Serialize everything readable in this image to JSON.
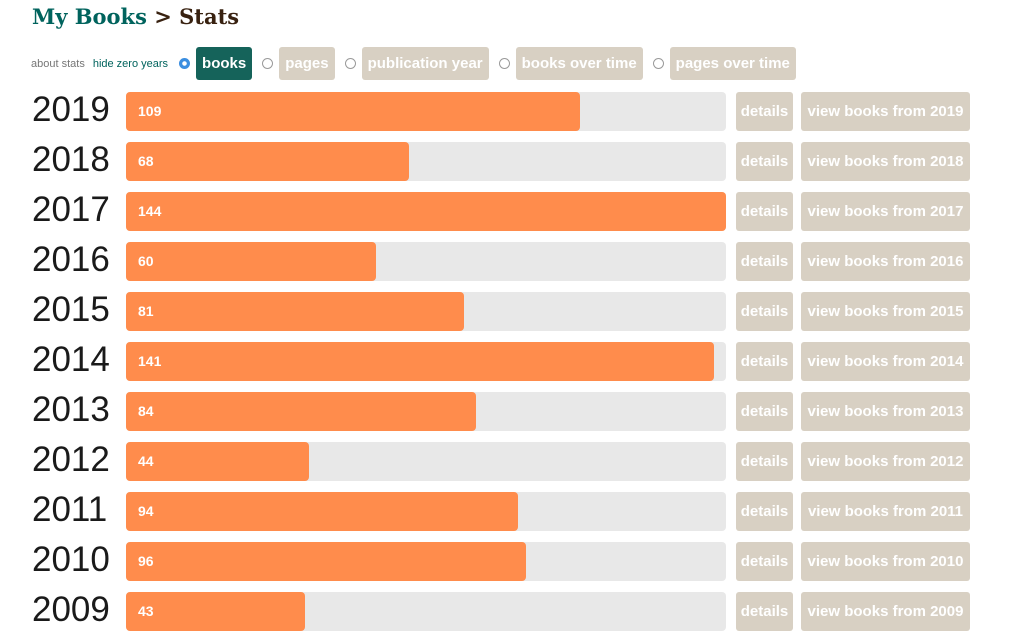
{
  "header": {
    "my_books": "My Books",
    "separator": " > ",
    "title": "Stats"
  },
  "controls": {
    "about_stats": "about stats",
    "hide_zero_years": "hide zero years",
    "tabs": [
      {
        "label": "books",
        "checked": true
      },
      {
        "label": "pages",
        "checked": false
      },
      {
        "label": "publication year",
        "checked": false
      },
      {
        "label": "books over time",
        "checked": false
      },
      {
        "label": "pages over time",
        "checked": false
      }
    ]
  },
  "chart_data": {
    "type": "bar",
    "orientation": "horizontal",
    "categories": [
      "2019",
      "2018",
      "2017",
      "2016",
      "2015",
      "2014",
      "2013",
      "2012",
      "2011",
      "2010",
      "2009"
    ],
    "values": [
      109,
      68,
      144,
      60,
      81,
      141,
      84,
      44,
      94,
      96,
      43
    ],
    "max": 144,
    "colors": {
      "bar": "#ff8c4c",
      "track": "#e8e8e8"
    }
  },
  "rows": [
    {
      "year": "2019",
      "count": "109",
      "details": "details",
      "view": "view books from 2019"
    },
    {
      "year": "2018",
      "count": "68",
      "details": "details",
      "view": "view books from 2018"
    },
    {
      "year": "2017",
      "count": "144",
      "details": "details",
      "view": "view books from 2017"
    },
    {
      "year": "2016",
      "count": "60",
      "details": "details",
      "view": "view books from 2016"
    },
    {
      "year": "2015",
      "count": "81",
      "details": "details",
      "view": "view books from 2015"
    },
    {
      "year": "2014",
      "count": "141",
      "details": "details",
      "view": "view books from 2014"
    },
    {
      "year": "2013",
      "count": "84",
      "details": "details",
      "view": "view books from 2013"
    },
    {
      "year": "2012",
      "count": "44",
      "details": "details",
      "view": "view books from 2012"
    },
    {
      "year": "2011",
      "count": "94",
      "details": "details",
      "view": "view books from 2011"
    },
    {
      "year": "2010",
      "count": "96",
      "details": "details",
      "view": "view books from 2010"
    },
    {
      "year": "2009",
      "count": "43",
      "details": "details",
      "view": "view books from 2009"
    }
  ],
  "colors": {
    "brand_green": "#00635d",
    "active_tab": "#15635a",
    "inactive_button": "#d8d0c3",
    "title_brown": "#382110"
  }
}
